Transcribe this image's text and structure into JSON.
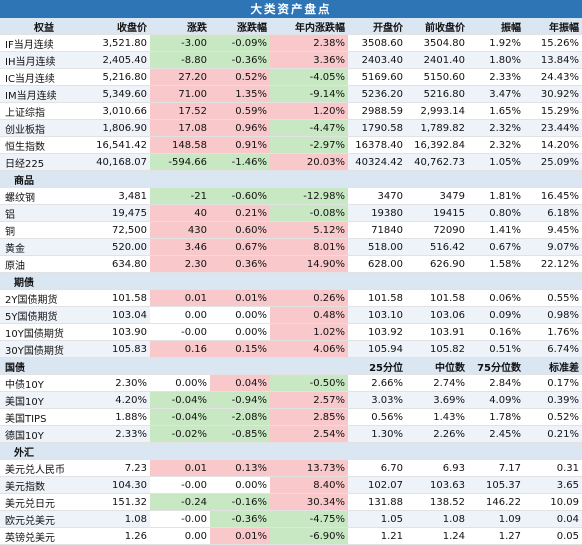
{
  "title": "大类资产盘点",
  "header": [
    "权益",
    "收盘价",
    "涨跌",
    "涨跌幅",
    "年内涨跌幅",
    "开盘价",
    "前收盘价",
    "振幅",
    "年振幅"
  ],
  "equity": [
    [
      "IF当月连续",
      "3,521.80",
      "-3.00",
      "-0.09%",
      "2.38%",
      "3508.60",
      "3504.80",
      "1.92%",
      "15.26%"
    ],
    [
      "IH当月连续",
      "2,405.40",
      "-8.80",
      "-0.36%",
      "3.36%",
      "2403.40",
      "2401.40",
      "1.80%",
      "13.84%"
    ],
    [
      "IC当月连续",
      "5,216.80",
      "27.20",
      "0.52%",
      "-4.05%",
      "5169.60",
      "5150.60",
      "2.33%",
      "24.43%"
    ],
    [
      "IM当月连续",
      "5,349.60",
      "71.00",
      "1.35%",
      "-9.14%",
      "5236.20",
      "5216.80",
      "3.47%",
      "30.92%"
    ],
    [
      "上证综指",
      "3,010.66",
      "17.52",
      "0.59%",
      "1.20%",
      "2988.59",
      "2,993.14",
      "1.65%",
      "15.29%"
    ],
    [
      "创业板指",
      "1,806.90",
      "17.08",
      "0.96%",
      "-4.47%",
      "1790.58",
      "1,789.82",
      "2.32%",
      "23.44%"
    ],
    [
      "恒生指数",
      "16,541.42",
      "148.58",
      "0.91%",
      "-2.97%",
      "16378.40",
      "16,392.84",
      "2.32%",
      "14.20%"
    ],
    [
      "日经225",
      "40,168.07",
      "-594.66",
      "-1.46%",
      "20.03%",
      "40324.42",
      "40,762.73",
      "1.05%",
      "25.09%"
    ]
  ],
  "commodity_header": "商品",
  "commodity": [
    [
      "螺纹钢",
      "3,481",
      "-21",
      "-0.60%",
      "-12.98%",
      "3470",
      "3479",
      "1.81%",
      "16.45%"
    ],
    [
      "铝",
      "19,475",
      "40",
      "0.21%",
      "-0.08%",
      "19380",
      "19415",
      "0.80%",
      "6.18%"
    ],
    [
      "铜",
      "72,500",
      "430",
      "0.60%",
      "5.12%",
      "71840",
      "72090",
      "1.41%",
      "9.45%"
    ],
    [
      "黄金",
      "520.00",
      "3.46",
      "0.67%",
      "8.01%",
      "518.00",
      "516.42",
      "0.67%",
      "9.07%"
    ],
    [
      "原油",
      "634.80",
      "2.30",
      "0.36%",
      "14.90%",
      "628.00",
      "626.90",
      "1.58%",
      "22.12%"
    ]
  ],
  "bond_header": "期债",
  "bond": [
    [
      "2Y国债期货",
      "101.58",
      "0.01",
      "0.01%",
      "0.26%",
      "101.58",
      "101.58",
      "0.06%",
      "0.55%"
    ],
    [
      "5Y国债期货",
      "103.04",
      "0.00",
      "0.00%",
      "0.48%",
      "103.10",
      "103.06",
      "0.09%",
      "0.98%"
    ],
    [
      "10Y国债期货",
      "103.90",
      "-0.00",
      "0.00%",
      "1.02%",
      "103.92",
      "103.91",
      "0.16%",
      "1.76%"
    ],
    [
      "30Y国债期货",
      "105.83",
      "0.16",
      "0.15%",
      "4.06%",
      "105.94",
      "105.82",
      "0.51%",
      "6.74%"
    ]
  ],
  "rates_header": [
    "国债",
    "25分位",
    "中位数",
    "75分位数",
    "标准差"
  ],
  "rates": [
    [
      "中债10Y",
      "2.30%",
      "0.00%",
      "0.04%",
      "-0.50%",
      "2.66%",
      "2.74%",
      "2.84%",
      "0.17%"
    ],
    [
      "美国10Y",
      "4.20%",
      "-0.04%",
      "-0.94%",
      "2.57%",
      "3.03%",
      "3.69%",
      "4.09%",
      "0.39%"
    ],
    [
      "美国TIPS",
      "1.88%",
      "-0.04%",
      "-2.08%",
      "2.85%",
      "0.56%",
      "1.43%",
      "1.78%",
      "0.52%"
    ],
    [
      "德国10Y",
      "2.33%",
      "-0.02%",
      "-0.85%",
      "2.54%",
      "1.30%",
      "2.26%",
      "2.45%",
      "0.21%"
    ]
  ],
  "fx_header": "外汇",
  "fx": [
    [
      "美元兑人民币",
      "7.23",
      "0.01",
      "0.13%",
      "13.73%",
      "6.70",
      "6.93",
      "7.17",
      "0.31"
    ],
    [
      "美元指数",
      "104.30",
      "-0.00",
      "0.00%",
      "8.40%",
      "102.07",
      "103.63",
      "105.37",
      "3.65"
    ],
    [
      "美元兑日元",
      "151.32",
      "-0.24",
      "-0.16%",
      "30.34%",
      "131.88",
      "138.52",
      "146.22",
      "10.09"
    ],
    [
      "欧元兑美元",
      "1.08",
      "-0.00",
      "-0.36%",
      "-4.75%",
      "1.05",
      "1.08",
      "1.09",
      "0.04"
    ],
    [
      "英镑兑美元",
      "1.26",
      "0.00",
      "0.01%",
      "-6.90%",
      "1.21",
      "1.24",
      "1.27",
      "0.05"
    ]
  ],
  "colors": {
    "up": "#f8c8ca",
    "down": "#c7e8c2",
    "header": "#2e75b6",
    "section": "#dbe6f3"
  }
}
